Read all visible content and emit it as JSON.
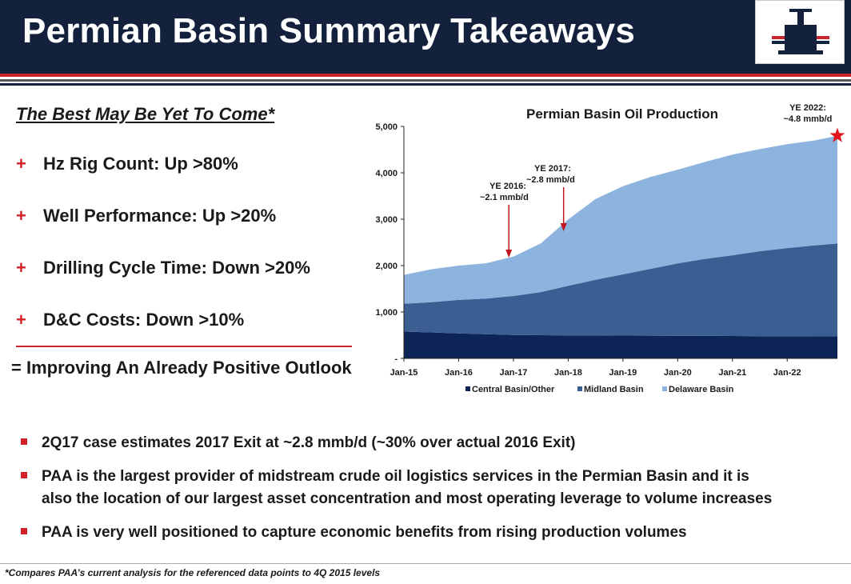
{
  "header": {
    "title": "Permian Basin Summary Takeaways"
  },
  "left": {
    "title": "The Best May Be Yet To Come*",
    "bullets": [
      {
        "marker": "+",
        "text": "Hz Rig Count: Up >80%"
      },
      {
        "marker": "+",
        "text": "Well Performance: Up >20%"
      },
      {
        "marker": "+",
        "text": "Drilling Cycle Time: Down >20%"
      },
      {
        "marker": "+",
        "text": "D&C Costs:  Down >10%"
      }
    ],
    "outlook": "= Improving An Already Positive Outlook"
  },
  "chart_data": {
    "type": "area",
    "stacked": true,
    "title": "Permian Basin Oil Production",
    "xlabel": "",
    "ylabel": "",
    "x_ticks": [
      "Jan-15",
      "Jan-16",
      "Jan-17",
      "Jan-18",
      "Jan-19",
      "Jan-20",
      "Jan-21",
      "Jan-22"
    ],
    "y_ticks": [
      "5,000",
      "4,000",
      "3,000",
      "2,000",
      "1,000",
      "-"
    ],
    "ylim": [
      0,
      5000
    ],
    "xlim": [
      "2015-01",
      "2022-12"
    ],
    "legend_position": "bottom",
    "x": [
      "2015-01",
      "2015-07",
      "2016-01",
      "2016-07",
      "2017-01",
      "2017-07",
      "2018-01",
      "2018-07",
      "2019-01",
      "2019-07",
      "2020-01",
      "2020-07",
      "2021-01",
      "2021-07",
      "2022-01",
      "2022-07",
      "2022-12"
    ],
    "series": [
      {
        "name": "Central Basin/Other",
        "color": "#0d2456",
        "values": [
          580,
          560,
          540,
          520,
          505,
          500,
          495,
          495,
          492,
          490,
          488,
          485,
          482,
          480,
          478,
          476,
          475
        ]
      },
      {
        "name": "Midland Basin",
        "color": "#3b5f93",
        "values": [
          600,
          650,
          720,
          770,
          840,
          930,
          1070,
          1200,
          1320,
          1440,
          1560,
          1660,
          1740,
          1830,
          1900,
          1960,
          2000
        ]
      },
      {
        "name": "Delaware Basin",
        "color": "#8db3df",
        "values": [
          620,
          710,
          740,
          760,
          850,
          1050,
          1430,
          1740,
          1900,
          1980,
          2020,
          2090,
          2170,
          2200,
          2240,
          2260,
          2325
        ]
      }
    ],
    "annotations": [
      {
        "label_line1": "YE 2016:",
        "label_line2": "~2.1 mmb/d",
        "x": "2016-12",
        "value": 2100
      },
      {
        "label_line1": "YE 2017:",
        "label_line2": "~2.8 mmb/d",
        "x": "2017-12",
        "value": 2800
      },
      {
        "label_line1": "YE 2022:",
        "label_line2": "~4.8 mmb/d",
        "x": "2022-12",
        "value": 4800
      }
    ],
    "colors": {
      "arrow": "#c0161d",
      "star": "#e3131d"
    }
  },
  "bottom": {
    "bullets": [
      {
        "lines": [
          "2Q17 case estimates 2017 Exit at ~2.8 mmb/d (~30% over actual 2016 Exit)"
        ]
      },
      {
        "lines": [
          "PAA is the largest provider of midstream crude oil logistics services in the Permian Basin and it is",
          "also the location of our largest asset concentration and most operating leverage to volume increases"
        ]
      },
      {
        "lines": [
          "PAA is very well positioned to capture economic benefits from rising production volumes"
        ]
      }
    ]
  },
  "footnote": "*Compares PAA’s current analysis for the referenced data points to 4Q 2015 levels"
}
